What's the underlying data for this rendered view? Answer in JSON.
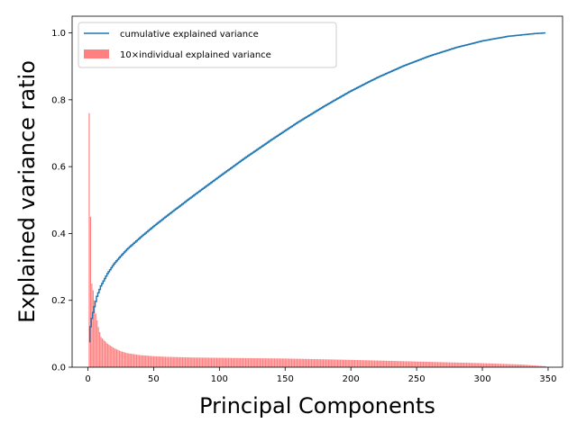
{
  "chart_data": {
    "type": "bar",
    "xlabel": "Principal Components",
    "ylabel": "Explained variance ratio",
    "xlim": [
      -12,
      361
    ],
    "ylim": [
      0,
      1.05
    ],
    "xticks": [
      0,
      50,
      100,
      150,
      200,
      250,
      300,
      350
    ],
    "yticks": [
      0.0,
      0.2,
      0.4,
      0.6,
      0.8,
      1.0
    ],
    "ytick_labels": [
      "0.0",
      "0.2",
      "0.4",
      "0.6",
      "0.8",
      "1.0"
    ],
    "grid": false,
    "legend_position": "top-left",
    "n_components": 348,
    "series": [
      {
        "name": "cumulative explained variance",
        "kind": "step",
        "color": "#1f77b4",
        "points": [
          [
            1,
            0.076
          ],
          [
            2,
            0.121
          ],
          [
            3,
            0.146
          ],
          [
            5,
            0.181
          ],
          [
            7,
            0.212
          ],
          [
            10,
            0.243
          ],
          [
            15,
            0.28
          ],
          [
            20,
            0.309
          ],
          [
            25,
            0.332
          ],
          [
            30,
            0.353
          ],
          [
            40,
            0.388
          ],
          [
            50,
            0.421
          ],
          [
            60,
            0.452
          ],
          [
            70,
            0.482
          ],
          [
            80,
            0.512
          ],
          [
            90,
            0.541
          ],
          [
            100,
            0.57
          ],
          [
            120,
            0.627
          ],
          [
            140,
            0.681
          ],
          [
            160,
            0.733
          ],
          [
            180,
            0.781
          ],
          [
            200,
            0.826
          ],
          [
            220,
            0.866
          ],
          [
            240,
            0.901
          ],
          [
            260,
            0.931
          ],
          [
            280,
            0.956
          ],
          [
            300,
            0.976
          ],
          [
            320,
            0.99
          ],
          [
            340,
            0.998
          ],
          [
            348,
            1.0
          ]
        ]
      },
      {
        "name": "10×individual explained variance",
        "kind": "bar",
        "color": "#ff8080",
        "points": [
          [
            1,
            0.76
          ],
          [
            2,
            0.45
          ],
          [
            3,
            0.25
          ],
          [
            4,
            0.23
          ],
          [
            5,
            0.2
          ],
          [
            6,
            0.16
          ],
          [
            7,
            0.14
          ],
          [
            8,
            0.12
          ],
          [
            10,
            0.09
          ],
          [
            15,
            0.07
          ],
          [
            20,
            0.057
          ],
          [
            25,
            0.048
          ],
          [
            30,
            0.042
          ],
          [
            40,
            0.036
          ],
          [
            50,
            0.033
          ],
          [
            60,
            0.031
          ],
          [
            80,
            0.029
          ],
          [
            100,
            0.028
          ],
          [
            150,
            0.026
          ],
          [
            200,
            0.022
          ],
          [
            250,
            0.017
          ],
          [
            300,
            0.012
          ],
          [
            330,
            0.008
          ],
          [
            348,
            0.003
          ]
        ]
      }
    ]
  }
}
